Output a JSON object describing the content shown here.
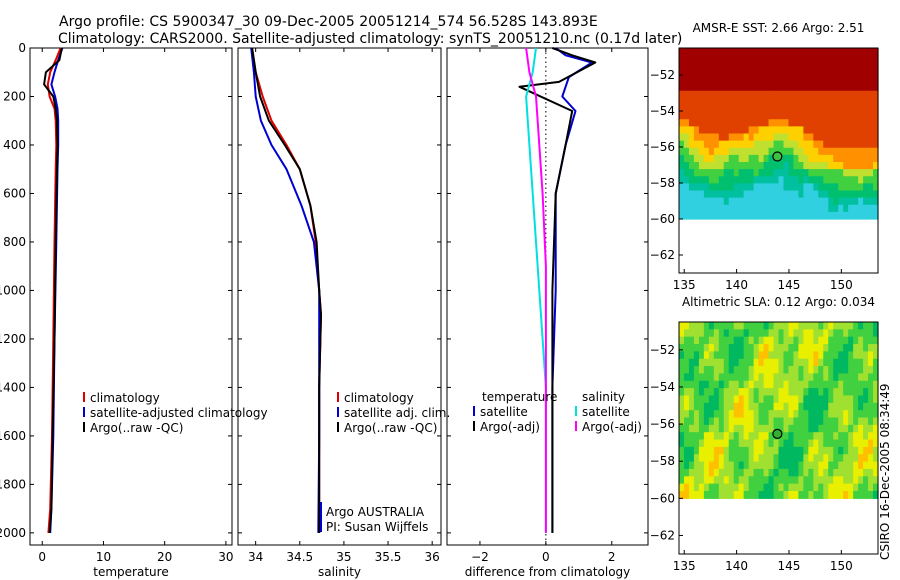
{
  "header": {
    "line1": "Argo profile: CS 5900347_30 09-Dec-2005 20051214_574 56.528S 143.893E",
    "line2": "Climatology: CARS2000. Satellite-adjusted climatology: synTS_20051210.nc (0.17d later)"
  },
  "side_label": "CSIRO 16-Dec-2005 08:34:49",
  "colors": {
    "climatology": "#e00000",
    "satellite": "#0000d0",
    "argo": "#000000",
    "satellite_s": "#00e0e0",
    "argo_s": "#ff00ff"
  },
  "chart_data": [
    {
      "type": "line",
      "name": "temperature-profile",
      "xlabel": "temperature",
      "xlim": [
        -2,
        31
      ],
      "ylim": [
        2050,
        0
      ],
      "xticks": [
        0,
        10,
        20,
        30
      ],
      "yticks": [
        0,
        200,
        400,
        600,
        800,
        1000,
        1200,
        1400,
        1600,
        1800,
        2000
      ],
      "legend": [
        "climatology",
        "satellite-adjusted climatology",
        "Argo(..raw -QC)"
      ],
      "series": [
        {
          "name": "climatology",
          "color": "#e00000",
          "x": [
            3.0,
            2.2,
            1.3,
            0.9,
            1.2,
            2.0,
            2.2,
            2.3,
            2.2,
            2.0,
            1.8,
            1.6,
            1.3,
            1.0
          ],
          "y": [
            0,
            50,
            100,
            150,
            200,
            250,
            300,
            400,
            500,
            800,
            1200,
            1600,
            1900,
            2000
          ]
        },
        {
          "name": "satellite-adjusted climatology",
          "color": "#0000d0",
          "x": [
            3.3,
            2.6,
            2.0,
            1.5,
            2.1,
            2.5,
            2.6,
            2.6,
            2.5,
            2.3,
            2.0,
            1.8,
            1.5,
            1.3
          ],
          "y": [
            0,
            50,
            100,
            150,
            200,
            250,
            300,
            400,
            500,
            800,
            1200,
            1600,
            1900,
            2000
          ]
        },
        {
          "name": "Argo(..raw -QC)",
          "color": "#000000",
          "x": [
            3.2,
            2.8,
            0.6,
            0.3,
            1.8,
            2.2,
            2.4,
            2.5,
            2.4,
            2.2,
            2.0,
            1.7,
            1.5,
            1.2
          ],
          "y": [
            0,
            50,
            100,
            150,
            200,
            250,
            300,
            400,
            500,
            800,
            1200,
            1600,
            1900,
            2000
          ]
        }
      ]
    },
    {
      "type": "line",
      "name": "salinity-profile",
      "xlabel": "salinity",
      "xlim": [
        33.8,
        36.1
      ],
      "ylim": [
        2050,
        0
      ],
      "xticks": [
        34,
        34.5,
        35,
        35.5,
        36
      ],
      "legend": [
        "climatology",
        "satellite adj. clim.",
        "Argo(..raw -QC)"
      ],
      "annotations": [
        "Argo AUSTRALIA",
        "PI: Susan Wijffels"
      ],
      "series": [
        {
          "name": "climatology",
          "color": "#e00000",
          "x": [
            33.96,
            34.0,
            34.08,
            34.18,
            34.35,
            34.5,
            34.62,
            34.68,
            34.72,
            34.74,
            34.72,
            34.72,
            34.72
          ],
          "y": [
            0,
            100,
            200,
            300,
            400,
            500,
            650,
            800,
            1000,
            1100,
            1400,
            1800,
            2000
          ]
        },
        {
          "name": "satellite adj. clim.",
          "color": "#0000d0",
          "x": [
            33.95,
            33.98,
            34.0,
            34.06,
            34.18,
            34.35,
            34.52,
            34.66,
            34.72,
            34.72,
            34.72,
            34.71
          ],
          "y": [
            0,
            100,
            200,
            300,
            400,
            500,
            650,
            800,
            1000,
            1200,
            1600,
            2000
          ]
        },
        {
          "name": "Argo(..raw -QC)",
          "color": "#000000",
          "x": [
            33.96,
            34.0,
            34.05,
            34.15,
            34.33,
            34.5,
            34.62,
            34.69,
            34.72,
            34.74,
            34.72,
            34.72
          ],
          "y": [
            0,
            100,
            200,
            300,
            400,
            500,
            650,
            800,
            1000,
            1100,
            1400,
            2000
          ]
        }
      ]
    },
    {
      "type": "line",
      "name": "difference-profile",
      "xlabel": "difference from climatology",
      "xlim": [
        -3,
        3.1
      ],
      "ylim": [
        2050,
        0
      ],
      "xticks": [
        -2,
        0,
        2
      ],
      "legend_temperature": [
        "temperature",
        "satellite",
        "Argo(-adj)"
      ],
      "legend_salinity": [
        "salinity",
        "satellite",
        "Argo(-adj)"
      ],
      "series": [
        {
          "name": "temperature satellite",
          "color": "#0000d0",
          "x": [
            0.3,
            0.6,
            1.4,
            0.7,
            0.5,
            0.9,
            0.6,
            0.3,
            0.3,
            0.2,
            0.2,
            0.2
          ],
          "y": [
            0,
            30,
            60,
            120,
            200,
            260,
            400,
            600,
            1000,
            1400,
            1800,
            2000
          ]
        },
        {
          "name": "temperature Argo(-adj)",
          "color": "#000000",
          "x": [
            0.2,
            0.8,
            1.5,
            0.4,
            -0.8,
            0.8,
            0.6,
            0.3,
            0.2,
            0.2,
            0.2,
            0.2
          ],
          "y": [
            0,
            30,
            60,
            140,
            160,
            260,
            400,
            600,
            1000,
            1400,
            1800,
            2000
          ]
        },
        {
          "name": "salinity satellite",
          "color": "#00e0e0",
          "x": [
            -0.3,
            -0.4,
            -0.6,
            -0.5,
            -0.4,
            -0.3,
            -0.2,
            -0.1,
            0.0,
            0.0,
            0.0
          ],
          "y": [
            0,
            100,
            200,
            400,
            600,
            800,
            1000,
            1200,
            1400,
            1800,
            2000
          ]
        },
        {
          "name": "salinity Argo(-adj)",
          "color": "#ff00ff",
          "x": [
            -0.6,
            -0.5,
            -0.3,
            -0.2,
            -0.1,
            0.0,
            0.0,
            0.0,
            0.0
          ],
          "y": [
            0,
            100,
            200,
            400,
            600,
            900,
            1200,
            1600,
            2000
          ]
        }
      ]
    },
    {
      "type": "heatmap",
      "name": "amsre-sst-map",
      "title": "AMSR-E SST: 2.66 Argo: 2.51",
      "xlim": [
        134.5,
        153.5
      ],
      "ylim": [
        -63,
        -50.5
      ],
      "xticks": [
        135,
        140,
        145,
        150
      ],
      "yticks": [
        -52,
        -54,
        -56,
        -58,
        -60,
        -62
      ],
      "data_ylim": [
        -60,
        -50.5
      ],
      "marker": {
        "lon": 143.893,
        "lat": -56.528
      },
      "sst_value": 2.66,
      "argo_value": 2.51
    },
    {
      "type": "heatmap",
      "name": "altimetric-sla-map",
      "title": "Altimetric SLA: 0.12 Argo: 0.034",
      "xlim": [
        134.5,
        153.5
      ],
      "ylim": [
        -63,
        -50.5
      ],
      "xticks": [
        135,
        140,
        145,
        150
      ],
      "yticks": [
        -52,
        -54,
        -56,
        -58,
        -60,
        -62
      ],
      "data_ylim": [
        -60,
        -50.5
      ],
      "marker": {
        "lon": 143.893,
        "lat": -56.528
      },
      "sla_value": 0.12,
      "argo_value": 0.034
    }
  ]
}
